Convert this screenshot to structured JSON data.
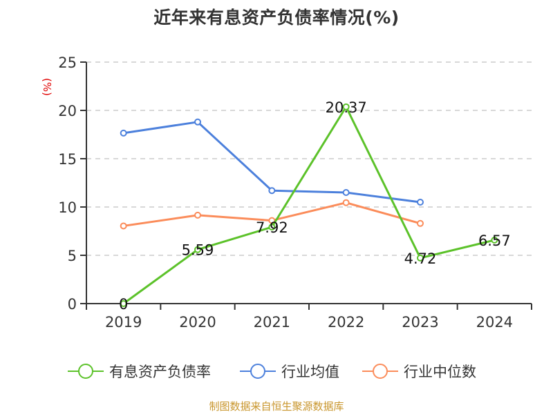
{
  "title": "近年来有息资产负债率情况(%)",
  "source_text": "制图数据来自恒生聚源数据库",
  "y_axis_unit": "(%)",
  "legend": [
    {
      "label": "有息资产负债率",
      "color": "#5cc22a"
    },
    {
      "label": "行业均值",
      "color": "#4c80dc"
    },
    {
      "label": "行业中位数",
      "color": "#fb8c5a"
    }
  ],
  "chart_data": {
    "type": "line",
    "title": "近年来有息资产负债率情况(%)",
    "xlabel": "",
    "ylabel": "(%)",
    "categories": [
      "2019",
      "2020",
      "2021",
      "2022",
      "2023",
      "2024"
    ],
    "ylim": [
      0,
      25
    ],
    "yticks": [
      0,
      5,
      10,
      15,
      20,
      25
    ],
    "grid": true,
    "legend_position": "bottom",
    "series": [
      {
        "name": "有息资产负债率",
        "color": "#5cc22a",
        "values": [
          0,
          5.59,
          7.92,
          20.37,
          4.72,
          6.57
        ],
        "labels": [
          "0",
          "5.59",
          "7.92",
          "20.37",
          "4.72",
          "6.57"
        ]
      },
      {
        "name": "行业均值",
        "color": "#4c80dc",
        "values": [
          17.65,
          18.8,
          11.7,
          11.5,
          10.5,
          null
        ]
      },
      {
        "name": "行业中位数",
        "color": "#fb8c5a",
        "values": [
          8.04,
          9.15,
          8.6,
          10.45,
          8.3,
          null
        ]
      }
    ]
  }
}
